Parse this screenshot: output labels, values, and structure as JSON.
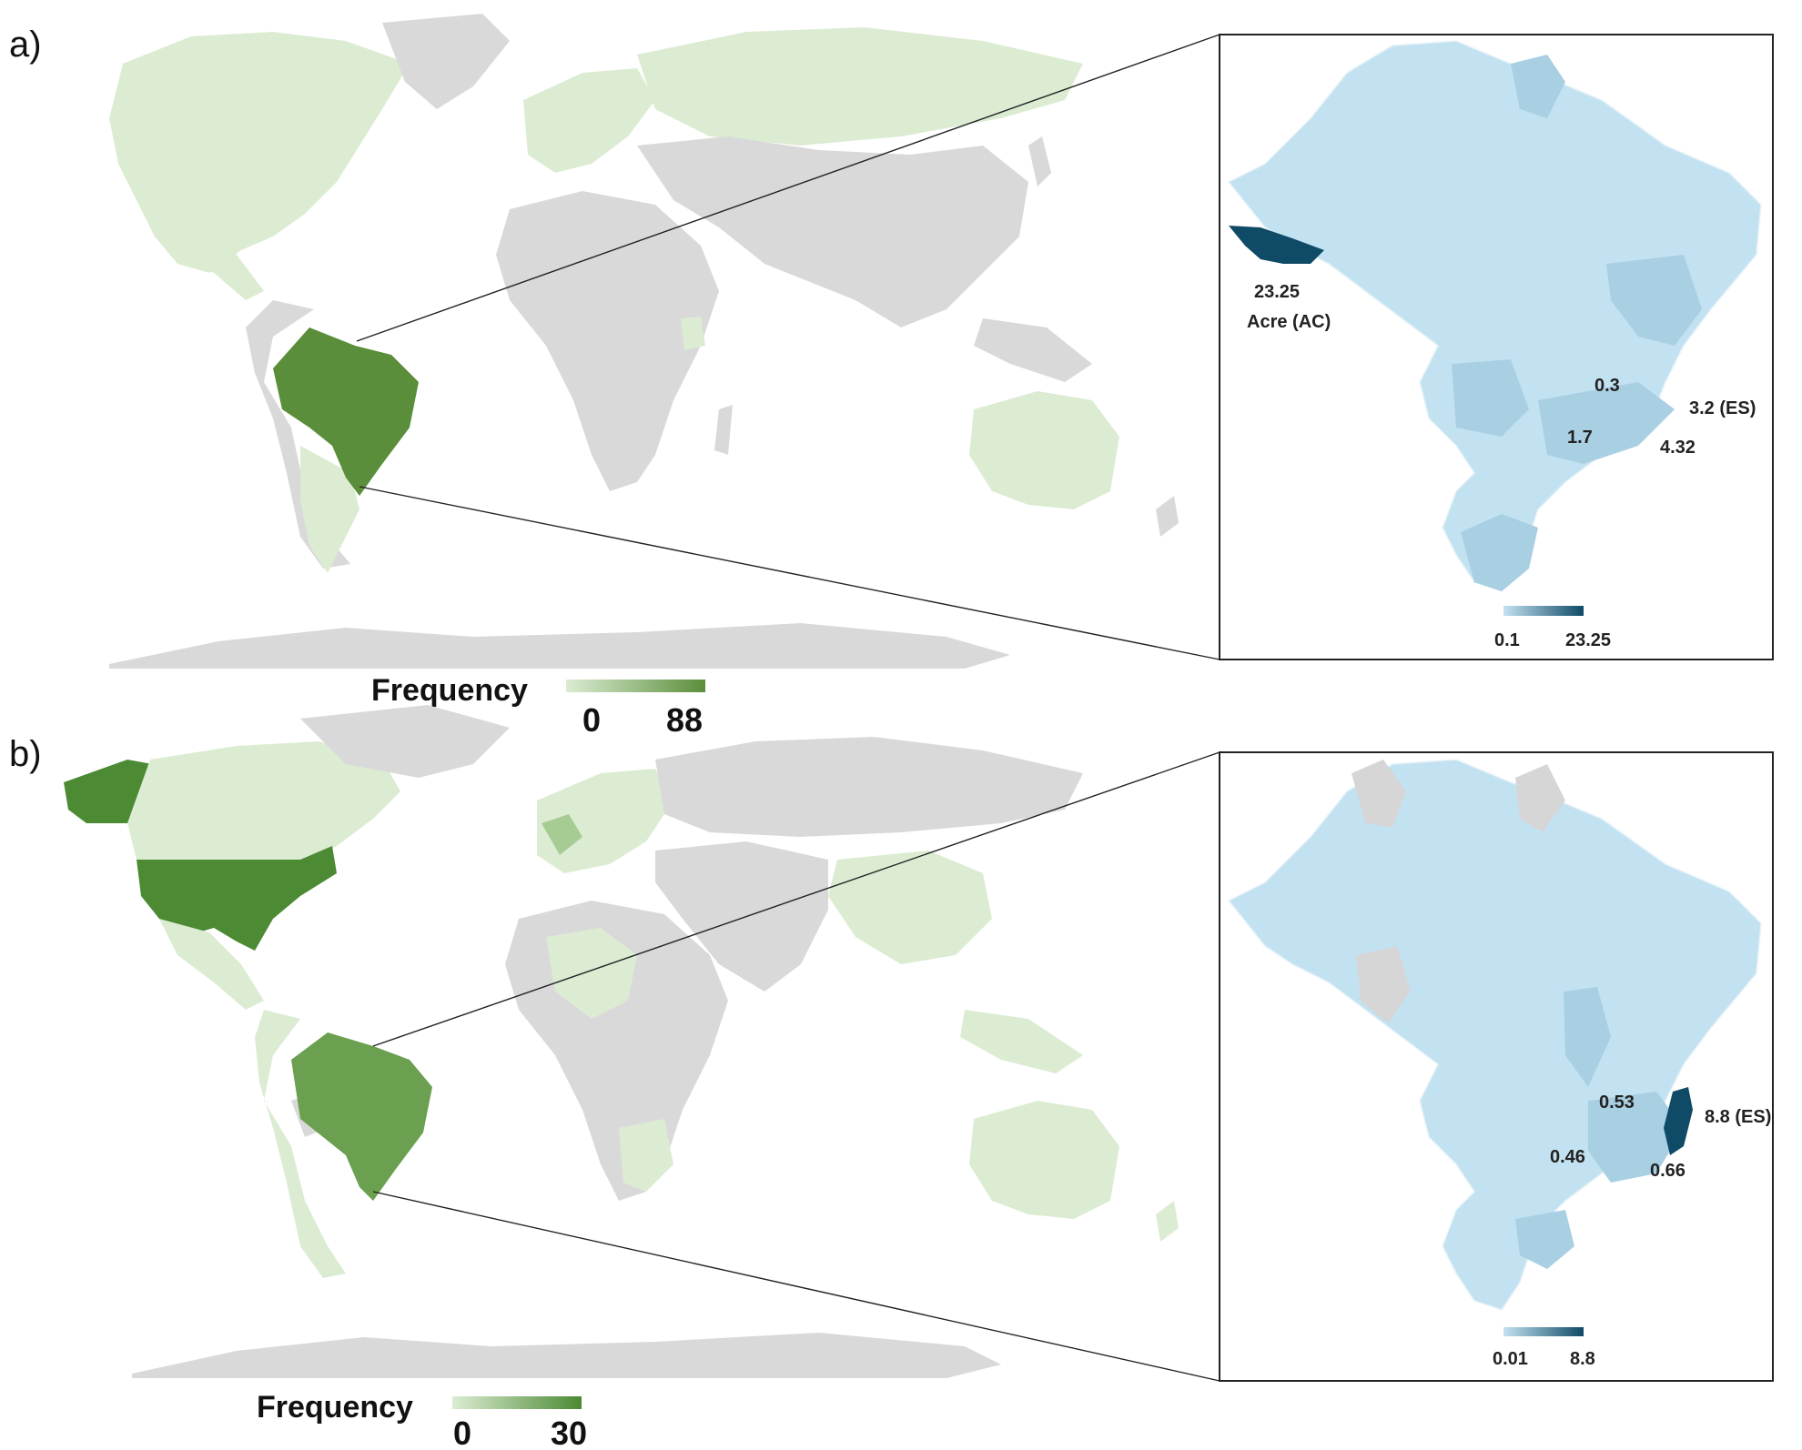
{
  "panels": [
    {
      "letter": "a)",
      "legend": {
        "title": "Frequency",
        "min": "0",
        "max": "88",
        "color_low": "#dcecd3",
        "color_high": "#5a8e3a"
      },
      "inset": {
        "legend": {
          "min": "0.1",
          "max": "23.25",
          "color_low": "#c3e2f1",
          "color_high": "#0f4a66"
        },
        "labels": {
          "acre_value": "23.25",
          "acre_name": "Acre (AC)",
          "v1": "0.3",
          "v2": "3.2 (ES)",
          "v3": "1.7",
          "v4": "4.32"
        }
      }
    },
    {
      "letter": "b)",
      "legend": {
        "title": "Frequency",
        "min": "0",
        "max": "30",
        "color_low": "#dcecd3",
        "color_high": "#4b8a32"
      },
      "inset": {
        "legend": {
          "min": "0.01",
          "max": "8.8",
          "color_low": "#c3e2f1",
          "color_high": "#0f4a66"
        },
        "labels": {
          "v1": "0.53",
          "v2": "8.8 (ES)",
          "v3": "0.46",
          "v4": "0.66"
        }
      }
    }
  ],
  "colors": {
    "land_gray": "#d9d9d9",
    "green_light": "#dcecd3",
    "green_mid": "#a7cc93",
    "green_dark": "#5a8e3a",
    "green_usa": "#4c8a34",
    "blue_base": "#c3e2f1",
    "blue_mid": "#a9cfe3",
    "blue_dark": "#0f4a66",
    "gray_state": "#d6d6d6"
  }
}
